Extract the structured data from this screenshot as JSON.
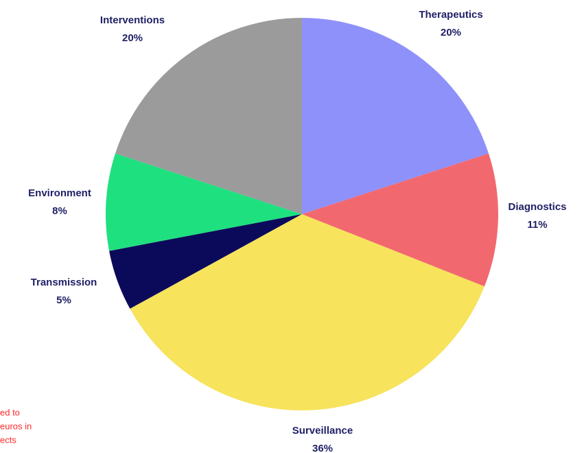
{
  "chart_data": {
    "type": "pie",
    "categories": [
      "Therapeutics",
      "Diagnostics",
      "Surveillance",
      "Transmission",
      "Environment",
      "Interventions"
    ],
    "values": [
      20,
      11,
      36,
      5,
      8,
      20
    ],
    "value_labels": [
      "20%",
      "11%",
      "36%",
      "5%",
      "8%",
      "20%"
    ],
    "colors": [
      "#8f91fa",
      "#f2686f",
      "#f7e35c",
      "#0b0a5a",
      "#1ee07f",
      "#9b9b9b"
    ],
    "annotation": [
      "ed to",
      "euros in",
      "ects"
    ]
  }
}
